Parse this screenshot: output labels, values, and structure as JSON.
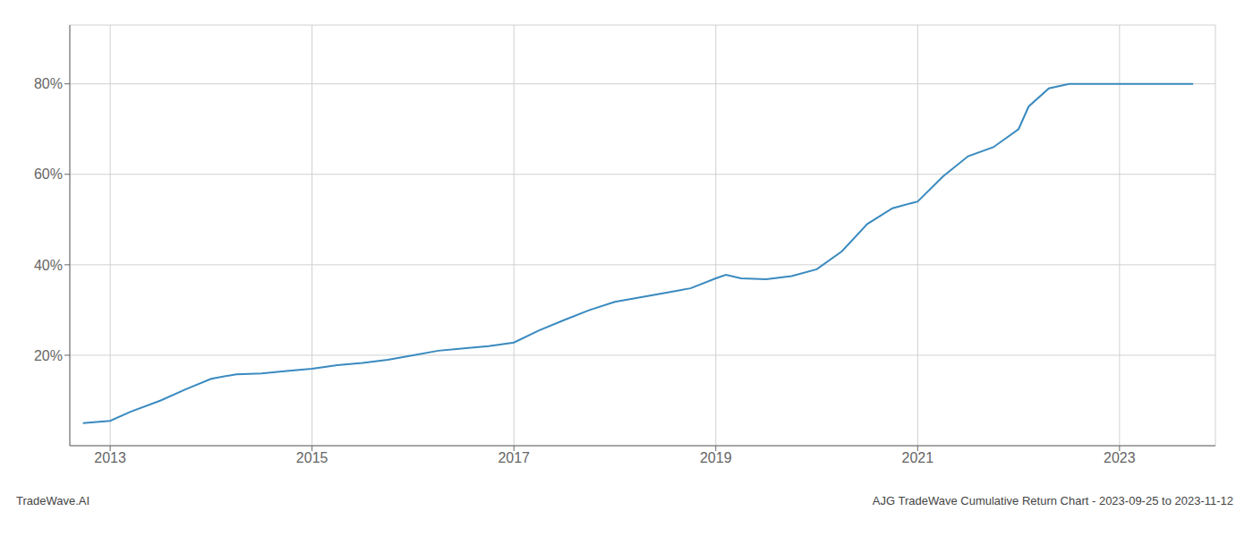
{
  "chart_data": {
    "type": "line",
    "x": [
      2012.73,
      2013.0,
      2013.2,
      2013.5,
      2013.75,
      2014.0,
      2014.25,
      2014.5,
      2014.75,
      2015.0,
      2015.25,
      2015.5,
      2015.75,
      2016.0,
      2016.25,
      2016.5,
      2016.75,
      2017.0,
      2017.25,
      2017.5,
      2017.75,
      2018.0,
      2018.25,
      2018.5,
      2018.75,
      2019.0,
      2019.1,
      2019.25,
      2019.5,
      2019.75,
      2020.0,
      2020.25,
      2020.5,
      2020.75,
      2021.0,
      2021.25,
      2021.5,
      2021.75,
      2022.0,
      2022.1,
      2022.3,
      2022.5,
      2022.75,
      2023.0,
      2023.4,
      2023.73
    ],
    "values": [
      0.05,
      0.055,
      0.075,
      0.1,
      0.125,
      0.148,
      0.158,
      0.16,
      0.165,
      0.17,
      0.178,
      0.183,
      0.19,
      0.2,
      0.21,
      0.215,
      0.22,
      0.228,
      0.255,
      0.278,
      0.3,
      0.318,
      0.328,
      0.338,
      0.348,
      0.37,
      0.378,
      0.37,
      0.368,
      0.375,
      0.39,
      0.43,
      0.49,
      0.525,
      0.54,
      0.595,
      0.64,
      0.66,
      0.7,
      0.75,
      0.79,
      0.8,
      0.8,
      0.8,
      0.8,
      0.8
    ],
    "color": "#3a8abf",
    "xlim": [
      2012.6,
      2023.95
    ],
    "xticks": [
      2013,
      2015,
      2017,
      2019,
      2021,
      2023
    ],
    "ylim": [
      0.0,
      0.93
    ],
    "yticks": [
      {
        "value": 0.2,
        "label": "20%"
      },
      {
        "value": 0.4,
        "label": "40%"
      },
      {
        "value": 0.6,
        "label": "60%"
      },
      {
        "value": 0.8,
        "label": "80%"
      }
    ],
    "grid": true,
    "annotations": [
      "TradeWave.AI",
      "AJG TradeWave Cumulative Return Chart - 2023-09-25 to 2023-11-12"
    ]
  }
}
